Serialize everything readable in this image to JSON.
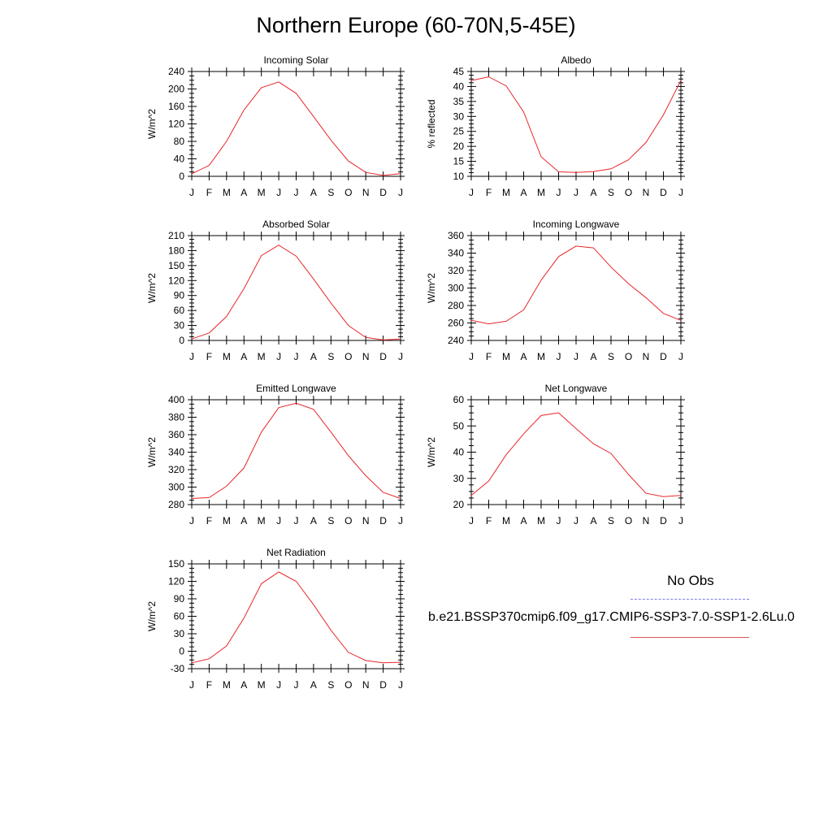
{
  "figure": {
    "title": "Northern Europe (60-70N,5-45E)"
  },
  "legend": {
    "obs_label": "No Obs",
    "case_label": "b.e21.BSSP370cmip6.f09_g17.CMIP6-SSP3-7.0-SSP1-2.6Lu.0",
    "obs_color": "#7b7be8",
    "case_color": "#e05555"
  },
  "colors": {
    "series": "#e8262b",
    "axis": "#000000"
  },
  "chart_data": [
    {
      "type": "line",
      "title": "Incoming Solar",
      "ylabel": "W/m^2",
      "x": [
        "J",
        "F",
        "M",
        "A",
        "M",
        "J",
        "J",
        "A",
        "S",
        "O",
        "N",
        "D",
        "J"
      ],
      "ylim": [
        0,
        240
      ],
      "yticks": [
        0,
        40,
        80,
        120,
        160,
        200,
        240
      ],
      "series": [
        {
          "values": [
            6,
            25,
            80,
            152,
            203,
            216,
            190,
            137,
            83,
            35,
            9,
            2,
            6
          ]
        }
      ]
    },
    {
      "type": "line",
      "title": "Albedo",
      "ylabel": "% reflected",
      "x": [
        "J",
        "F",
        "M",
        "A",
        "M",
        "J",
        "J",
        "A",
        "S",
        "O",
        "N",
        "D",
        "J"
      ],
      "ylim": [
        10,
        45
      ],
      "yticks": [
        10,
        15,
        20,
        25,
        30,
        35,
        40,
        45
      ],
      "series": [
        {
          "values": [
            42,
            43.2,
            40.2,
            31.5,
            16.5,
            11.5,
            11.3,
            11.6,
            12.5,
            15.5,
            21.3,
            30.5,
            42
          ]
        }
      ]
    },
    {
      "type": "line",
      "title": "Absorbed Solar",
      "ylabel": "W/m^2",
      "x": [
        "J",
        "F",
        "M",
        "A",
        "M",
        "J",
        "J",
        "A",
        "S",
        "O",
        "N",
        "D",
        "J"
      ],
      "ylim": [
        0,
        210
      ],
      "yticks": [
        0,
        30,
        60,
        90,
        120,
        150,
        180,
        210
      ],
      "series": [
        {
          "values": [
            3,
            15,
            48,
            104,
            170,
            191,
            169,
            123,
            75,
            30,
            6,
            1,
            3
          ]
        }
      ]
    },
    {
      "type": "line",
      "title": "Incoming Longwave",
      "ylabel": "W/m^2",
      "x": [
        "J",
        "F",
        "M",
        "A",
        "M",
        "J",
        "J",
        "A",
        "S",
        "O",
        "N",
        "D",
        "J"
      ],
      "ylim": [
        240,
        360
      ],
      "yticks": [
        240,
        260,
        280,
        300,
        320,
        340,
        360
      ],
      "series": [
        {
          "values": [
            263,
            259,
            262,
            275,
            309,
            336,
            348,
            346,
            324,
            305,
            289,
            271,
            263
          ]
        }
      ]
    },
    {
      "type": "line",
      "title": "Emitted Longwave",
      "ylabel": "W/m^2",
      "x": [
        "J",
        "F",
        "M",
        "A",
        "M",
        "J",
        "J",
        "A",
        "S",
        "O",
        "N",
        "D",
        "J"
      ],
      "ylim": [
        280,
        400
      ],
      "yticks": [
        280,
        300,
        320,
        340,
        360,
        380,
        400
      ],
      "series": [
        {
          "values": [
            287,
            288,
            301,
            322,
            363,
            391,
            396,
            389,
            363,
            336,
            313,
            294,
            287
          ]
        }
      ]
    },
    {
      "type": "line",
      "title": "Net Longwave",
      "ylabel": "W/m^2",
      "x": [
        "J",
        "F",
        "M",
        "A",
        "M",
        "J",
        "J",
        "A",
        "S",
        "O",
        "N",
        "D",
        "J"
      ],
      "ylim": [
        20,
        60
      ],
      "yticks": [
        20,
        30,
        40,
        50,
        60
      ],
      "series": [
        {
          "values": [
            23.5,
            29,
            39,
            47,
            54,
            55,
            49,
            43.2,
            39.5,
            31.5,
            24.3,
            23,
            23.5
          ]
        }
      ]
    },
    {
      "type": "line",
      "title": "Net Radiation",
      "ylabel": "W/m^2",
      "x": [
        "J",
        "F",
        "M",
        "A",
        "M",
        "J",
        "J",
        "A",
        "S",
        "O",
        "N",
        "D",
        "J"
      ],
      "ylim": [
        -30,
        150
      ],
      "yticks": [
        -30,
        0,
        30,
        60,
        90,
        120,
        150
      ],
      "series": [
        {
          "values": [
            -20,
            -13,
            9,
            57,
            116,
            136,
            120,
            80,
            36,
            -2,
            -16,
            -20,
            -19
          ]
        }
      ]
    }
  ]
}
